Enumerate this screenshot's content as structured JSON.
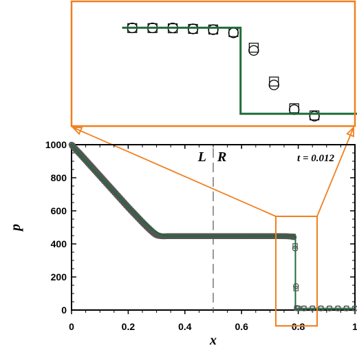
{
  "chart_data": {
    "type": "line",
    "xlabel": "x",
    "ylabel": "p",
    "xlim": [
      0,
      1
    ],
    "ylim": [
      0,
      1000
    ],
    "x_ticks": [
      "0",
      "0.2",
      "0.4",
      "0.6",
      "0.8",
      "1"
    ],
    "y_ticks": [
      "0",
      "200",
      "400",
      "600",
      "800",
      "1000"
    ],
    "x_tick_values": [
      0,
      0.2,
      0.4,
      0.6,
      0.8,
      1
    ],
    "y_tick_values": [
      0,
      200,
      400,
      600,
      800,
      1000
    ],
    "annotations": {
      "left_label": "L",
      "right_label": "R",
      "time": "t = 0.012",
      "interface_x": 0.5
    },
    "series": [
      {
        "kind": "reference-line",
        "color": "#1e6b3a",
        "x": [
          0,
          0.02,
          0.05,
          0.1,
          0.15,
          0.2,
          0.25,
          0.3,
          0.32,
          0.34,
          0.4,
          0.5,
          0.6,
          0.7,
          0.79,
          0.79,
          0.85,
          1.0
        ],
        "y": [
          1000,
          960,
          900,
          805,
          715,
          625,
          540,
          470,
          452,
          447,
          447,
          447,
          447,
          447,
          447,
          10,
          10,
          10
        ]
      },
      {
        "kind": "circle-markers",
        "color": "#555555",
        "x": [
          0.0,
          0.01,
          0.02,
          0.03,
          0.04,
          0.05,
          0.06,
          0.07,
          0.08,
          0.09,
          0.1,
          0.11,
          0.12,
          0.13,
          0.14,
          0.15,
          0.16,
          0.17,
          0.18,
          0.19,
          0.2,
          0.21,
          0.22,
          0.23,
          0.24,
          0.25,
          0.26,
          0.27,
          0.28,
          0.29,
          0.3,
          0.31,
          0.32,
          0.33,
          0.34,
          0.35,
          0.37,
          0.4,
          0.43,
          0.46,
          0.5,
          0.53,
          0.56,
          0.6,
          0.63,
          0.66,
          0.7,
          0.73,
          0.76,
          0.775,
          0.785,
          0.789,
          0.792,
          0.795,
          0.8,
          0.82,
          0.85,
          0.88,
          0.91,
          0.94,
          0.97,
          1.0
        ],
        "y": [
          1000,
          980,
          962,
          944,
          925,
          906,
          887,
          868,
          849,
          830,
          811,
          792,
          773,
          754,
          735,
          716,
          697,
          678,
          659,
          640,
          621,
          603,
          585,
          567,
          549,
          531,
          514,
          497,
          481,
          466,
          454,
          448,
          446,
          446,
          447,
          447,
          447,
          447,
          447,
          447,
          447,
          447,
          447,
          447,
          447,
          447,
          447,
          447,
          446,
          444,
          440,
          372,
          145,
          12,
          10,
          10,
          10,
          10,
          10,
          10,
          10,
          10
        ]
      },
      {
        "kind": "square-markers",
        "color": "#555555",
        "x": [
          0.0,
          0.01,
          0.02,
          0.03,
          0.04,
          0.05,
          0.06,
          0.07,
          0.08,
          0.09,
          0.1,
          0.11,
          0.12,
          0.13,
          0.14,
          0.15,
          0.16,
          0.17,
          0.18,
          0.19,
          0.2,
          0.21,
          0.22,
          0.23,
          0.24,
          0.25,
          0.26,
          0.27,
          0.28,
          0.29,
          0.3,
          0.31,
          0.32,
          0.33,
          0.34,
          0.35,
          0.37,
          0.4,
          0.43,
          0.46,
          0.5,
          0.53,
          0.56,
          0.6,
          0.63,
          0.66,
          0.7,
          0.73,
          0.76,
          0.775,
          0.785,
          0.789,
          0.792,
          0.795,
          0.8,
          0.82,
          0.85,
          0.88,
          0.91,
          0.94,
          0.97,
          1.0
        ],
        "y": [
          1000,
          980,
          962,
          944,
          925,
          906,
          887,
          868,
          849,
          830,
          811,
          792,
          773,
          754,
          735,
          716,
          697,
          678,
          659,
          640,
          621,
          603,
          585,
          567,
          549,
          531,
          514,
          497,
          481,
          466,
          454,
          448,
          446,
          446,
          447,
          447,
          447,
          447,
          447,
          447,
          447,
          447,
          447,
          447,
          447,
          447,
          447,
          447,
          447,
          446,
          445,
          388,
          130,
          12,
          10,
          10,
          10,
          10,
          10,
          10,
          10,
          10
        ]
      }
    ],
    "zoom_inset": {
      "highlight_box_color": "#f07f1f",
      "x_range": [
        0.72,
        0.86
      ],
      "y_range": [
        -50,
        580
      ],
      "line_x": [
        0.745,
        0.8035,
        0.8035,
        0.8645
      ],
      "line_y": [
        447,
        447,
        12,
        12
      ],
      "circles_x": [
        0.75,
        0.76,
        0.77,
        0.78,
        0.79,
        0.8,
        0.81,
        0.82,
        0.83,
        0.84
      ],
      "circles_y": [
        446,
        446,
        446,
        441,
        437,
        421,
        332,
        158,
        33,
        0
      ],
      "squares_x": [
        0.75,
        0.76,
        0.77,
        0.78,
        0.79,
        0.8,
        0.81,
        0.82,
        0.83,
        0.84
      ],
      "squares_y": [
        445,
        445,
        444,
        441,
        438,
        425,
        346,
        175,
        40,
        4
      ]
    }
  }
}
